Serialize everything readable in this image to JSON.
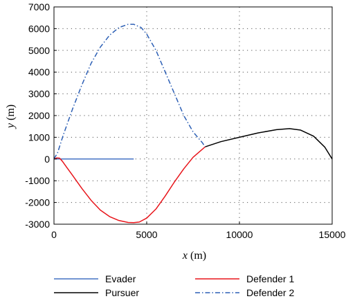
{
  "chart_data": {
    "type": "line",
    "xlabel": {
      "var": "x",
      "unit": " (m)"
    },
    "ylabel": {
      "var": "y",
      "unit": " (m)"
    },
    "xlim": [
      0,
      15000
    ],
    "ylim": [
      -3000,
      7000
    ],
    "xticks": [
      0,
      5000,
      10000,
      15000
    ],
    "yticks": [
      -3000,
      -2000,
      -1000,
      0,
      1000,
      2000,
      3000,
      4000,
      5000,
      6000,
      7000
    ],
    "grid": true,
    "legend_position": "bottom",
    "series": [
      {
        "name": "Evader",
        "color": "#4472c4",
        "dash": "solid",
        "x": [
          0,
          4300
        ],
        "y": [
          0,
          0
        ]
      },
      {
        "name": "Pursuer",
        "color": "#000000",
        "dash": "solid",
        "x": [
          8150,
          9000,
          10000,
          11000,
          12000,
          12700,
          13300,
          14000,
          14600,
          15000
        ],
        "y": [
          560,
          800,
          1000,
          1200,
          1350,
          1400,
          1330,
          1050,
          550,
          0
        ]
      },
      {
        "name": "Defender 1",
        "color": "#e8141a",
        "dash": "solid",
        "x": [
          0,
          150,
          300,
          450,
          700,
          1000,
          1500,
          2000,
          2500,
          3000,
          3500,
          4000,
          4300,
          4600,
          5000,
          5500,
          6000,
          6500,
          7000,
          7500,
          8000,
          8150
        ],
        "y": [
          0,
          50,
          40,
          -100,
          -400,
          -750,
          -1350,
          -1900,
          -2350,
          -2650,
          -2830,
          -2920,
          -2930,
          -2900,
          -2720,
          -2300,
          -1700,
          -1050,
          -450,
          80,
          450,
          560
        ]
      },
      {
        "name": "Defender 2",
        "color": "#2c5fb5",
        "dash": "dashdot",
        "x": [
          0,
          200,
          500,
          1000,
          1500,
          2000,
          2500,
          3000,
          3500,
          4000,
          4300,
          4700,
          5000,
          5500,
          6000,
          6500,
          7000,
          7500,
          8000,
          8150
        ],
        "y": [
          0,
          300,
          1100,
          2300,
          3400,
          4400,
          5150,
          5700,
          6050,
          6200,
          6200,
          6050,
          5750,
          5000,
          4000,
          3000,
          2000,
          1250,
          750,
          560
        ]
      }
    ]
  }
}
